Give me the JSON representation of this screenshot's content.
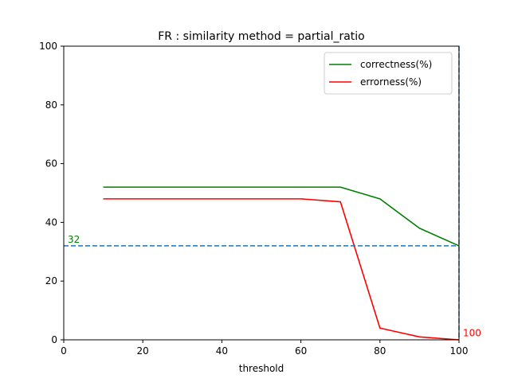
{
  "chart_data": {
    "type": "line",
    "title": "FR : similarity method = partial_ratio",
    "xlabel": "threshold",
    "ylabel": "",
    "xlim": [
      0,
      100
    ],
    "ylim": [
      0,
      100
    ],
    "xticks": [
      0,
      20,
      40,
      60,
      80,
      100
    ],
    "yticks": [
      0,
      20,
      40,
      60,
      80,
      100
    ],
    "grid": false,
    "legend_position": "top-right",
    "series": [
      {
        "name": "correctness(%)",
        "color": "#008000",
        "x": [
          10,
          20,
          30,
          40,
          50,
          60,
          70,
          80,
          90,
          100
        ],
        "y": [
          52,
          52,
          52,
          52,
          52,
          52,
          52,
          48,
          38,
          32
        ]
      },
      {
        "name": "errorness(%)",
        "color": "#ff0000",
        "x": [
          10,
          20,
          30,
          40,
          50,
          60,
          70,
          80,
          90,
          100
        ],
        "y": [
          48,
          48,
          48,
          48,
          48,
          48,
          47,
          4,
          1,
          0
        ]
      }
    ],
    "reference_lines": [
      {
        "orientation": "horizontal",
        "value": 32,
        "color": "#1f77b4",
        "style": "dashed"
      },
      {
        "orientation": "vertical",
        "value": 100,
        "color": "#1f77b4",
        "style": "dashed"
      }
    ],
    "annotations": [
      {
        "text": "32",
        "x": 1,
        "y": 33,
        "color": "#008000"
      },
      {
        "text": "100",
        "x": 101,
        "y": 1.2,
        "color": "#ff0000"
      }
    ]
  }
}
